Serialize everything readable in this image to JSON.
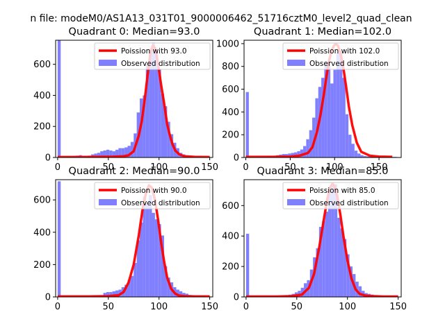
{
  "figure": {
    "suptitle": "n file: modeM0/AS1A13_031T01_9000006462_51716cztM0_level2_quad_clean"
  },
  "chart_data": [
    {
      "type": "bar",
      "title": "Quadrant 0: Median=93.0",
      "median": 93.0,
      "xlim": [
        -2,
        153
      ],
      "ylim": [
        0,
        755
      ],
      "xticks": [
        0,
        50,
        100,
        150
      ],
      "yticks": [
        0,
        200,
        400,
        600
      ],
      "grid": false,
      "legend": {
        "placement": "top-right",
        "entries": [
          "Poission with 93.0",
          "Observed distribution"
        ]
      },
      "series": [
        {
          "name": "Poission with 93.0",
          "kind": "line",
          "color": "#ff0000",
          "x": [
            0,
            20,
            40,
            55,
            65,
            70,
            75,
            80,
            83,
            86,
            88,
            90,
            92,
            94,
            96,
            98,
            100,
            102,
            105,
            108,
            110,
            113,
            116,
            120,
            125,
            135,
            150
          ],
          "y": [
            3,
            3,
            4,
            5,
            8,
            14,
            40,
            140,
            235,
            380,
            490,
            600,
            690,
            720,
            705,
            640,
            560,
            470,
            350,
            215,
            160,
            90,
            45,
            20,
            8,
            4,
            3
          ]
        },
        {
          "name": "Observed distribution",
          "kind": "bar",
          "color": "#8080ff",
          "bin_width": 3,
          "bin_start": [
            0,
            3,
            6,
            9,
            12,
            15,
            18,
            21,
            24,
            27,
            30,
            33,
            36,
            39,
            42,
            45,
            48,
            51,
            54,
            57,
            60,
            63,
            66,
            69,
            72,
            75,
            78,
            81,
            84,
            87,
            90,
            93,
            96,
            99,
            102,
            105,
            108,
            111,
            114,
            117,
            120,
            123,
            126,
            129,
            132,
            135,
            138,
            141,
            144,
            147
          ],
          "counts": [
            755,
            2,
            3,
            5,
            8,
            10,
            12,
            15,
            10,
            8,
            12,
            20,
            25,
            30,
            40,
            45,
            50,
            45,
            40,
            50,
            60,
            60,
            65,
            75,
            100,
            155,
            290,
            380,
            400,
            600,
            690,
            740,
            700,
            570,
            410,
            330,
            230,
            150,
            95,
            60,
            30,
            20,
            12,
            8,
            5,
            4,
            3,
            2,
            2,
            2
          ]
        }
      ]
    },
    {
      "type": "bar",
      "title": "Quadrant 1: Median=102.0",
      "median": 102.0,
      "xlim": [
        -2,
        175
      ],
      "ylim": [
        0,
        1030
      ],
      "xticks": [
        0,
        50,
        100,
        150
      ],
      "yticks": [
        0,
        200,
        400,
        600,
        800,
        1000
      ],
      "grid": false,
      "legend": {
        "placement": "top-right",
        "entries": [
          "Poission with 102.0",
          "Observed distribution"
        ]
      },
      "series": [
        {
          "name": "Poission with 102.0",
          "kind": "line",
          "color": "#ff0000",
          "x": [
            0,
            30,
            50,
            60,
            70,
            75,
            80,
            84,
            88,
            91,
            94,
            97,
            100,
            102,
            104,
            107,
            110,
            113,
            116,
            120,
            125,
            130,
            140,
            150,
            165
          ],
          "y": [
            5,
            5,
            8,
            15,
            40,
            90,
            220,
            370,
            560,
            720,
            860,
            950,
            990,
            995,
            980,
            900,
            780,
            620,
            450,
            280,
            130,
            50,
            15,
            8,
            5
          ]
        },
        {
          "name": "Observed distribution",
          "kind": "bar",
          "color": "#8080ff",
          "bin_width": 3.4,
          "bin_start": [
            0,
            3.4,
            6.8,
            10.2,
            13.6,
            17,
            20.4,
            23.8,
            27.2,
            30.6,
            34,
            37.4,
            40.8,
            44.2,
            47.6,
            51,
            54.4,
            57.8,
            61.2,
            64.6,
            68,
            71.4,
            74.8,
            78.2,
            81.6,
            85,
            88.4,
            91.8,
            95.2,
            98.6,
            102,
            105.4,
            108.8,
            112.2,
            115.6,
            119,
            122.4,
            125.8,
            129.2,
            132.6,
            136,
            139.4,
            142.8,
            146.2,
            149.6,
            153,
            156.4,
            159.8,
            163.2,
            166.6
          ],
          "counts": [
            575,
            3,
            3,
            5,
            8,
            10,
            10,
            12,
            15,
            15,
            20,
            25,
            30,
            30,
            35,
            40,
            45,
            55,
            70,
            100,
            160,
            240,
            350,
            520,
            620,
            700,
            840,
            820,
            650,
            770,
            920,
            930,
            700,
            380,
            200,
            120,
            60,
            35,
            20,
            12,
            10,
            8,
            8,
            6,
            6,
            5,
            5,
            5,
            5,
            5
          ]
        }
      ]
    },
    {
      "type": "bar",
      "title": "Quadrant 2: Median=90.0",
      "median": 90.0,
      "xlim": [
        -2,
        153
      ],
      "ylim": [
        0,
        725
      ],
      "xticks": [
        0,
        50,
        100,
        150
      ],
      "yticks": [
        0,
        200,
        400,
        600
      ],
      "grid": false,
      "legend": {
        "placement": "top-right",
        "entries": [
          "Poission with 90.0",
          "Observed distribution"
        ]
      },
      "series": [
        {
          "name": "Poission with 90.0",
          "kind": "line",
          "color": "#ff0000",
          "x": [
            0,
            30,
            50,
            60,
            65,
            70,
            75,
            80,
            84,
            87,
            90,
            93,
            96,
            99,
            102,
            105,
            108,
            112,
            116,
            120,
            125,
            135,
            150
          ],
          "y": [
            3,
            3,
            5,
            10,
            30,
            90,
            200,
            380,
            550,
            640,
            690,
            675,
            600,
            480,
            340,
            220,
            120,
            50,
            20,
            8,
            5,
            3,
            3
          ]
        },
        {
          "name": "Observed distribution",
          "kind": "bar",
          "color": "#8080ff",
          "bin_width": 3,
          "bin_start": [
            0,
            3,
            6,
            9,
            12,
            15,
            18,
            21,
            24,
            27,
            30,
            33,
            36,
            39,
            42,
            45,
            48,
            51,
            54,
            57,
            60,
            63,
            66,
            69,
            72,
            75,
            78,
            81,
            84,
            87,
            90,
            93,
            96,
            99,
            102,
            105,
            108,
            111,
            114,
            117,
            120,
            123,
            126,
            129,
            132,
            135,
            138,
            141,
            144,
            147
          ],
          "counts": [
            715,
            2,
            2,
            2,
            2,
            3,
            3,
            3,
            3,
            3,
            3,
            4,
            5,
            5,
            5,
            25,
            30,
            30,
            35,
            40,
            45,
            60,
            75,
            105,
            130,
            210,
            350,
            460,
            620,
            580,
            630,
            520,
            480,
            450,
            380,
            190,
            120,
            90,
            60,
            45,
            35,
            25,
            20,
            12,
            10,
            8,
            5,
            4,
            3,
            3
          ]
        }
      ]
    },
    {
      "type": "bar",
      "title": "Quadrant 3: Median=85.0",
      "median": 85.0,
      "xlim": [
        -2,
        153
      ],
      "ylim": [
        0,
        770
      ],
      "xticks": [
        0,
        50,
        100,
        150
      ],
      "yticks": [
        0,
        200,
        400,
        600
      ],
      "grid": false,
      "legend": {
        "placement": "top-right",
        "entries": [
          "Poission with 85.0",
          "Observed distribution"
        ]
      },
      "series": [
        {
          "name": "Poission with 85.0",
          "kind": "line",
          "color": "#ff0000",
          "x": [
            0,
            30,
            45,
            55,
            62,
            67,
            72,
            76,
            80,
            83,
            85,
            87,
            90,
            93,
            96,
            100,
            104,
            108,
            112,
            118,
            125,
            135,
            150
          ],
          "y": [
            3,
            3,
            5,
            15,
            60,
            150,
            320,
            480,
            640,
            720,
            740,
            730,
            660,
            540,
            400,
            240,
            120,
            50,
            20,
            8,
            5,
            3,
            3
          ]
        },
        {
          "name": "Observed distribution",
          "kind": "bar",
          "color": "#8080ff",
          "bin_width": 3,
          "bin_start": [
            0,
            3,
            6,
            9,
            12,
            15,
            18,
            21,
            24,
            27,
            30,
            33,
            36,
            39,
            42,
            45,
            48,
            51,
            54,
            57,
            60,
            63,
            66,
            69,
            72,
            75,
            78,
            81,
            84,
            87,
            90,
            93,
            96,
            99,
            102,
            105,
            108,
            111,
            114,
            117,
            120,
            123,
            126,
            129,
            132,
            135,
            138,
            141,
            144,
            147
          ],
          "counts": [
            415,
            2,
            2,
            3,
            3,
            3,
            3,
            4,
            4,
            5,
            5,
            6,
            8,
            10,
            15,
            20,
            30,
            40,
            60,
            90,
            110,
            180,
            260,
            320,
            460,
            500,
            560,
            680,
            750,
            740,
            520,
            450,
            380,
            280,
            200,
            150,
            100,
            70,
            40,
            25,
            20,
            15,
            10,
            8,
            6,
            5,
            4,
            3,
            3,
            3
          ]
        }
      ]
    }
  ]
}
